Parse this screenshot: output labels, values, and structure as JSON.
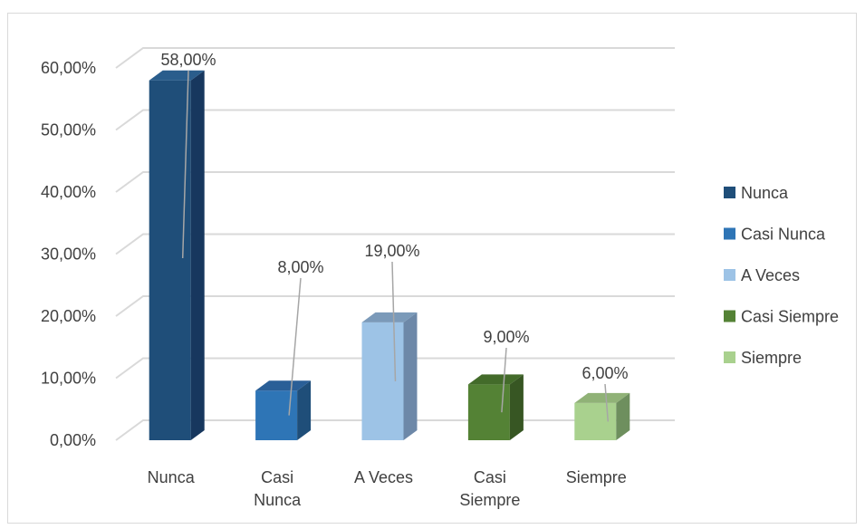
{
  "chart_data": {
    "type": "bar",
    "title": "",
    "xlabel": "",
    "ylabel": "",
    "categories": [
      "Nunca",
      "Casi Nunca",
      "A Veces",
      "Casi Siempre",
      "Siempre"
    ],
    "category_label_lines": [
      [
        "Nunca"
      ],
      [
        "Casi",
        "Nunca"
      ],
      [
        "A Veces"
      ],
      [
        "Casi",
        "Siempre"
      ],
      [
        "Siempre"
      ]
    ],
    "values": [
      58.0,
      8.0,
      19.0,
      9.0,
      6.0
    ],
    "data_labels": [
      "58,00%",
      "8,00%",
      "19,00%",
      "9,00%",
      "6,00%"
    ],
    "ylim": [
      0,
      60
    ],
    "yticks": [
      0,
      10,
      20,
      30,
      40,
      50,
      60
    ],
    "ytick_labels": [
      "0,00%",
      "10,00%",
      "20,00%",
      "30,00%",
      "40,00%",
      "50,00%",
      "60,00%"
    ],
    "colors": [
      "#1f4e79",
      "#2e75b6",
      "#9dc3e6",
      "#548235",
      "#a9d18e"
    ],
    "side_colors": [
      "#17375e",
      "#1f4e79",
      "#6d88a8",
      "#375623",
      "#6e8f5e"
    ],
    "top_colors": [
      "#2a5d8c",
      "#2a5f97",
      "#7b9ab9",
      "#436b2a",
      "#90b277"
    ],
    "legend": [
      "Nunca",
      "Casi Nunca",
      "A Veces",
      "Casi Siempre",
      "Siempre"
    ],
    "legend_position": "right",
    "grid": true,
    "three_d": true
  }
}
